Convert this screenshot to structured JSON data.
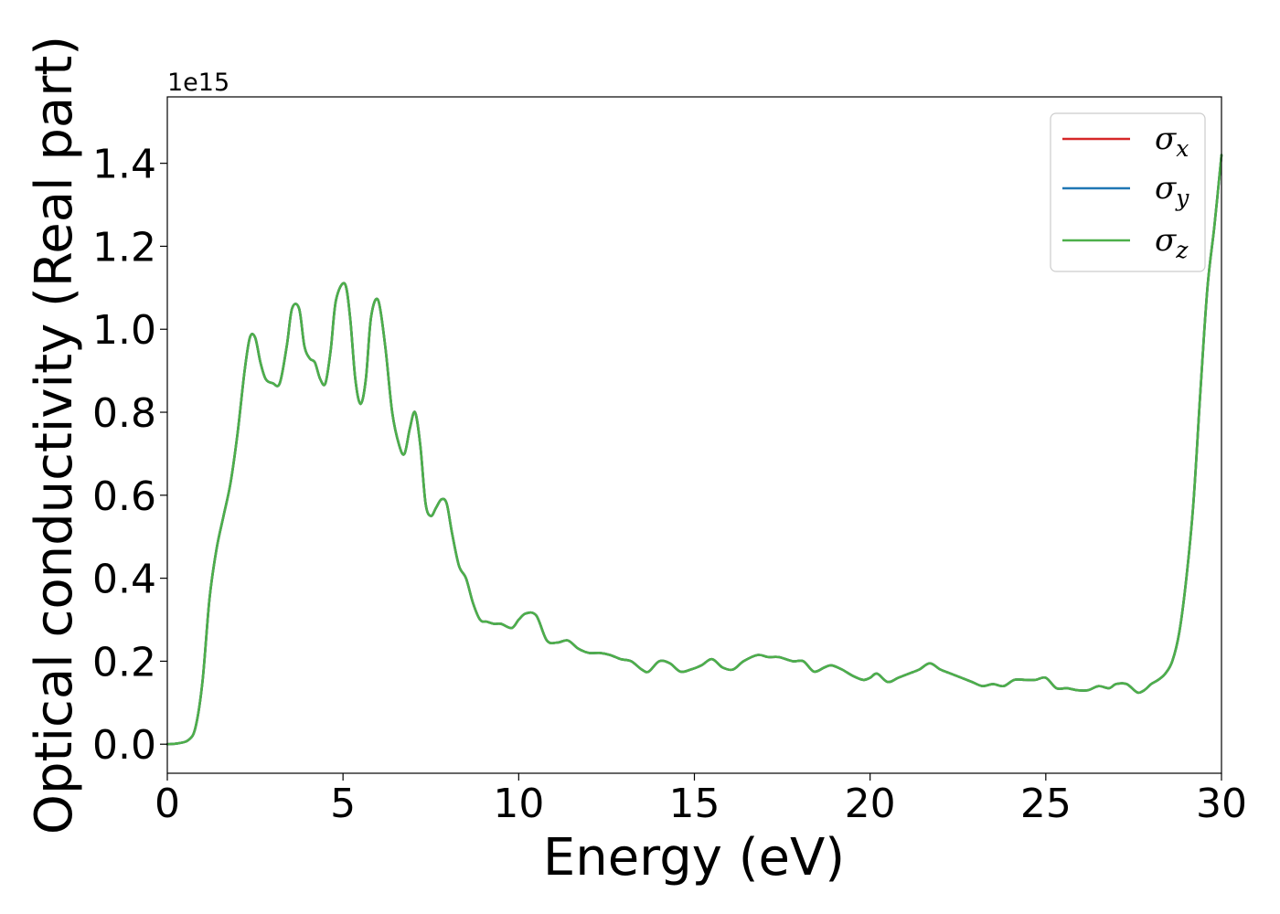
{
  "chart_data": {
    "type": "line",
    "title": "",
    "xlabel": "Energy (eV)",
    "ylabel": "Optical conductivity (Real part)",
    "y_offset_label": "1e15",
    "xlim": [
      0,
      30
    ],
    "ylim": [
      -0.07,
      1.56
    ],
    "x_ticks": [
      0,
      5,
      10,
      15,
      20,
      25,
      30
    ],
    "x_tick_labels": [
      "0",
      "5",
      "10",
      "15",
      "20",
      "25",
      "30"
    ],
    "y_ticks": [
      0.0,
      0.2,
      0.4,
      0.6,
      0.8,
      1.0,
      1.2,
      1.4
    ],
    "y_tick_labels": [
      "0.0",
      "0.2",
      "0.4",
      "0.6",
      "0.8",
      "1.0",
      "1.2",
      "1.4"
    ],
    "grid": false,
    "legend_position": "top-right",
    "x": [
      0,
      0.3,
      0.6,
      0.8,
      1.0,
      1.2,
      1.4,
      1.6,
      1.8,
      2.0,
      2.2,
      2.35,
      2.5,
      2.65,
      2.8,
      3.0,
      3.2,
      3.4,
      3.55,
      3.75,
      3.9,
      4.05,
      4.2,
      4.35,
      4.5,
      4.65,
      4.8,
      5.05,
      5.2,
      5.35,
      5.5,
      5.65,
      5.8,
      6.0,
      6.2,
      6.4,
      6.6,
      6.75,
      6.9,
      7.05,
      7.2,
      7.35,
      7.5,
      7.65,
      7.8,
      7.95,
      8.1,
      8.3,
      8.5,
      8.7,
      8.9,
      9.1,
      9.3,
      9.5,
      9.8,
      10.0,
      10.2,
      10.5,
      10.8,
      11.1,
      11.4,
      11.7,
      12.0,
      12.3,
      12.6,
      12.9,
      13.2,
      13.5,
      13.7,
      14.0,
      14.3,
      14.6,
      14.9,
      15.2,
      15.5,
      15.8,
      16.1,
      16.4,
      16.8,
      17.1,
      17.4,
      17.8,
      18.1,
      18.4,
      18.7,
      18.9,
      19.2,
      19.5,
      19.8,
      20.0,
      20.2,
      20.5,
      20.8,
      21.1,
      21.4,
      21.7,
      22.0,
      22.3,
      22.6,
      22.9,
      23.2,
      23.5,
      23.8,
      24.1,
      24.4,
      24.7,
      25.0,
      25.3,
      25.6,
      25.9,
      26.2,
      26.5,
      26.8,
      27.0,
      27.3,
      27.6,
      27.8,
      28.0,
      28.2,
      28.4,
      28.6,
      28.8,
      29.0,
      29.2,
      29.4,
      29.6,
      29.8,
      30.0
    ],
    "series": [
      {
        "name": "σx",
        "color": "#d62728",
        "values": [
          0.0,
          0.002,
          0.01,
          0.04,
          0.15,
          0.35,
          0.47,
          0.55,
          0.63,
          0.75,
          0.9,
          0.98,
          0.98,
          0.92,
          0.88,
          0.87,
          0.87,
          0.96,
          1.05,
          1.05,
          0.96,
          0.93,
          0.92,
          0.88,
          0.87,
          0.95,
          1.07,
          1.11,
          1.03,
          0.88,
          0.82,
          0.88,
          1.03,
          1.07,
          0.96,
          0.8,
          0.72,
          0.7,
          0.76,
          0.8,
          0.72,
          0.58,
          0.55,
          0.57,
          0.59,
          0.58,
          0.51,
          0.43,
          0.4,
          0.34,
          0.3,
          0.295,
          0.29,
          0.29,
          0.28,
          0.3,
          0.315,
          0.31,
          0.25,
          0.245,
          0.25,
          0.23,
          0.22,
          0.22,
          0.215,
          0.205,
          0.2,
          0.18,
          0.175,
          0.2,
          0.195,
          0.175,
          0.18,
          0.19,
          0.205,
          0.185,
          0.18,
          0.2,
          0.215,
          0.21,
          0.21,
          0.2,
          0.2,
          0.175,
          0.185,
          0.19,
          0.18,
          0.165,
          0.155,
          0.16,
          0.17,
          0.15,
          0.16,
          0.17,
          0.18,
          0.195,
          0.18,
          0.17,
          0.16,
          0.15,
          0.14,
          0.145,
          0.14,
          0.155,
          0.155,
          0.155,
          0.16,
          0.135,
          0.135,
          0.13,
          0.13,
          0.14,
          0.135,
          0.145,
          0.145,
          0.125,
          0.13,
          0.145,
          0.155,
          0.17,
          0.2,
          0.27,
          0.4,
          0.58,
          0.85,
          1.1,
          1.25,
          1.42
        ]
      },
      {
        "name": "σy",
        "color": "#1f77b4",
        "values": [
          0.0,
          0.002,
          0.01,
          0.04,
          0.15,
          0.35,
          0.47,
          0.55,
          0.63,
          0.75,
          0.9,
          0.98,
          0.98,
          0.92,
          0.88,
          0.87,
          0.87,
          0.96,
          1.05,
          1.05,
          0.96,
          0.93,
          0.92,
          0.88,
          0.87,
          0.95,
          1.07,
          1.11,
          1.03,
          0.88,
          0.82,
          0.88,
          1.03,
          1.07,
          0.96,
          0.8,
          0.72,
          0.7,
          0.76,
          0.8,
          0.72,
          0.58,
          0.55,
          0.57,
          0.59,
          0.58,
          0.51,
          0.43,
          0.4,
          0.34,
          0.3,
          0.295,
          0.29,
          0.29,
          0.28,
          0.3,
          0.315,
          0.31,
          0.25,
          0.245,
          0.25,
          0.23,
          0.22,
          0.22,
          0.215,
          0.205,
          0.2,
          0.18,
          0.175,
          0.2,
          0.195,
          0.175,
          0.18,
          0.19,
          0.205,
          0.185,
          0.18,
          0.2,
          0.215,
          0.21,
          0.21,
          0.2,
          0.2,
          0.175,
          0.185,
          0.19,
          0.18,
          0.165,
          0.155,
          0.16,
          0.17,
          0.15,
          0.16,
          0.17,
          0.18,
          0.195,
          0.18,
          0.17,
          0.16,
          0.15,
          0.14,
          0.145,
          0.14,
          0.155,
          0.155,
          0.155,
          0.16,
          0.135,
          0.135,
          0.13,
          0.13,
          0.14,
          0.135,
          0.145,
          0.145,
          0.125,
          0.13,
          0.145,
          0.155,
          0.17,
          0.2,
          0.27,
          0.4,
          0.58,
          0.85,
          1.1,
          1.25,
          1.42
        ]
      },
      {
        "name": "σz",
        "color": "#4daf4a",
        "values": [
          0.0,
          0.002,
          0.01,
          0.04,
          0.15,
          0.35,
          0.47,
          0.55,
          0.63,
          0.75,
          0.9,
          0.98,
          0.98,
          0.92,
          0.88,
          0.87,
          0.87,
          0.96,
          1.05,
          1.05,
          0.96,
          0.93,
          0.92,
          0.88,
          0.87,
          0.95,
          1.07,
          1.11,
          1.03,
          0.88,
          0.82,
          0.88,
          1.03,
          1.07,
          0.96,
          0.8,
          0.72,
          0.7,
          0.76,
          0.8,
          0.72,
          0.58,
          0.55,
          0.57,
          0.59,
          0.58,
          0.51,
          0.43,
          0.4,
          0.34,
          0.3,
          0.295,
          0.29,
          0.29,
          0.28,
          0.3,
          0.315,
          0.31,
          0.25,
          0.245,
          0.25,
          0.23,
          0.22,
          0.22,
          0.215,
          0.205,
          0.2,
          0.18,
          0.175,
          0.2,
          0.195,
          0.175,
          0.18,
          0.19,
          0.205,
          0.185,
          0.18,
          0.2,
          0.215,
          0.21,
          0.21,
          0.2,
          0.2,
          0.175,
          0.185,
          0.19,
          0.18,
          0.165,
          0.155,
          0.16,
          0.17,
          0.15,
          0.16,
          0.17,
          0.18,
          0.195,
          0.18,
          0.17,
          0.16,
          0.15,
          0.14,
          0.145,
          0.14,
          0.155,
          0.155,
          0.155,
          0.16,
          0.135,
          0.135,
          0.13,
          0.13,
          0.14,
          0.135,
          0.145,
          0.145,
          0.125,
          0.13,
          0.145,
          0.155,
          0.17,
          0.2,
          0.27,
          0.4,
          0.58,
          0.85,
          1.1,
          1.25,
          1.42
        ]
      }
    ]
  }
}
